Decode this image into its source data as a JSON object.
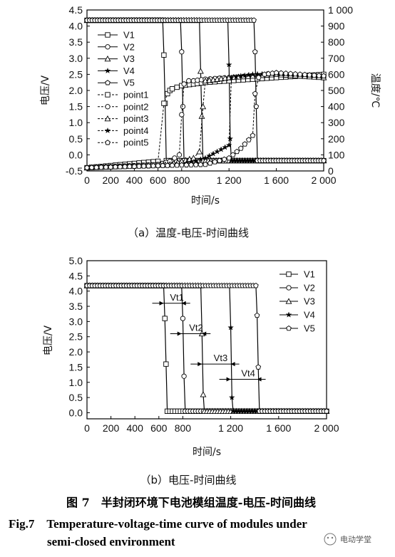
{
  "chart_data": [
    {
      "type": "line",
      "title": "",
      "subtitle": "（a）温度-电压-时间曲线",
      "xlabel": "时间/s",
      "ylabel": "电压/V",
      "y2label": "温度/℃",
      "xlim": [
        0,
        2000
      ],
      "ylim": [
        -0.5,
        4.5
      ],
      "y2lim": [
        0,
        1000
      ],
      "xticks": [
        "0",
        "200",
        "400",
        "600",
        "800",
        "1 200",
        "1 600",
        "2 000"
      ],
      "xtick_values": [
        0,
        200,
        400,
        600,
        800,
        1200,
        1600,
        2000
      ],
      "yticks": [
        "-0.5",
        "0.0",
        "0.5",
        "1.0",
        "1.5",
        "2.0",
        "2.5",
        "3.0",
        "3.5",
        "4.0",
        "4.5"
      ],
      "y2ticks": [
        "0",
        "100",
        "200",
        "300",
        "400",
        "500",
        "600",
        "700",
        "800",
        "900",
        "1 000"
      ],
      "legend": [
        "V1",
        "V2",
        "V3",
        "V4",
        "V5",
        "point1",
        "point2",
        "point3",
        "point4",
        "point5"
      ],
      "legend_position": "top-left",
      "series": [
        {
          "name": "V1",
          "axis": "voltage",
          "marker": "square",
          "x": [
            0,
            640,
            650,
            660,
            670,
            2000
          ],
          "y": [
            4.18,
            4.18,
            3.1,
            1.6,
            -0.18,
            -0.18
          ]
        },
        {
          "name": "V2",
          "axis": "voltage",
          "marker": "circle",
          "x": [
            0,
            790,
            800,
            810,
            820,
            2000
          ],
          "y": [
            4.18,
            4.18,
            3.2,
            1.5,
            -0.18,
            -0.18
          ]
        },
        {
          "name": "V3",
          "axis": "voltage",
          "marker": "triangle",
          "x": [
            0,
            950,
            960,
            970,
            980,
            2000
          ],
          "y": [
            4.18,
            4.18,
            2.6,
            1.2,
            -0.18,
            -0.18
          ]
        },
        {
          "name": "V4",
          "axis": "voltage",
          "marker": "star",
          "x": [
            0,
            1190,
            1200,
            1210,
            1220,
            2000
          ],
          "y": [
            4.18,
            4.18,
            2.8,
            0.5,
            -0.18,
            -0.18
          ]
        },
        {
          "name": "V5",
          "axis": "voltage",
          "marker": "pentagon",
          "x": [
            0,
            1410,
            1420,
            1430,
            1440,
            2000
          ],
          "y": [
            4.18,
            4.18,
            3.2,
            1.5,
            -0.18,
            -0.18
          ]
        },
        {
          "name": "point1",
          "axis": "temperature",
          "marker": "square-dashed",
          "x": [
            0,
            600,
            650,
            680,
            700,
            720,
            760,
            800,
            900,
            1000,
            1200,
            1400,
            1600,
            1800,
            2000
          ],
          "y": [
            20,
            60,
            420,
            480,
            500,
            510,
            520,
            530,
            540,
            550,
            560,
            570,
            580,
            590,
            600
          ]
        },
        {
          "name": "point2",
          "axis": "temperature",
          "marker": "circle-dashed",
          "x": [
            0,
            600,
            700,
            780,
            800,
            820,
            860,
            900,
            1000,
            1200,
            1400,
            1600,
            1800,
            2000
          ],
          "y": [
            20,
            40,
            60,
            100,
            350,
            540,
            560,
            560,
            570,
            580,
            590,
            600,
            590,
            580
          ]
        },
        {
          "name": "point3",
          "axis": "temperature",
          "marker": "triangle-dashed",
          "x": [
            0,
            700,
            800,
            900,
            950,
            980,
            1000,
            1100,
            1200,
            1400,
            1600,
            1800,
            2000
          ],
          "y": [
            20,
            40,
            60,
            80,
            120,
            400,
            560,
            570,
            580,
            590,
            600,
            590,
            580
          ]
        },
        {
          "name": "point4",
          "axis": "temperature",
          "marker": "star-dashed",
          "x": [
            0,
            800,
            1000,
            1100,
            1200,
            1220,
            1300,
            1400,
            1600,
            1800,
            2000
          ],
          "y": [
            20,
            40,
            80,
            120,
            160,
            580,
            590,
            600,
            605,
            600,
            590
          ]
        },
        {
          "name": "point5",
          "axis": "temperature",
          "marker": "pentagon-dashed",
          "x": [
            0,
            1000,
            1200,
            1300,
            1400,
            1420,
            1450,
            1500,
            1600,
            1800,
            2000
          ],
          "y": [
            20,
            40,
            80,
            140,
            220,
            480,
            580,
            600,
            610,
            600,
            590
          ]
        }
      ]
    },
    {
      "type": "line",
      "title": "",
      "subtitle": "（b）电压-时间曲线",
      "xlabel": "时间/s",
      "ylabel": "电压/V",
      "xlim": [
        0,
        2000
      ],
      "ylim": [
        -0.2,
        5.0
      ],
      "xticks": [
        "0",
        "200",
        "400",
        "600",
        "800",
        "1 200",
        "1 600",
        "2 000"
      ],
      "xtick_values": [
        0,
        200,
        400,
        600,
        800,
        1200,
        1600,
        2000
      ],
      "yticks": [
        "0.0",
        "0.5",
        "1.0",
        "1.5",
        "2.0",
        "2.5",
        "3.0",
        "3.5",
        "4.0",
        "4.5",
        "5.0"
      ],
      "legend": [
        "V1",
        "V2",
        "V3",
        "V4",
        "V5"
      ],
      "legend_position": "top-right",
      "annotations": [
        "Vt1",
        "Vt2",
        "Vt3",
        "Vt4"
      ],
      "annotation_spans": [
        [
          640,
          790
        ],
        [
          790,
          960
        ],
        [
          960,
          1200
        ],
        [
          1200,
          1420
        ]
      ],
      "annotation_levels": [
        3.6,
        2.6,
        1.6,
        1.1
      ],
      "series": [
        {
          "name": "V1",
          "marker": "square",
          "x": [
            0,
            640,
            650,
            660,
            670,
            2000
          ],
          "y": [
            4.18,
            4.18,
            3.1,
            1.6,
            0.05,
            0.05
          ]
        },
        {
          "name": "V2",
          "marker": "circle",
          "x": [
            0,
            790,
            800,
            810,
            820,
            2000
          ],
          "y": [
            4.18,
            4.18,
            3.1,
            1.2,
            0.05,
            0.05
          ]
        },
        {
          "name": "V3",
          "marker": "triangle",
          "x": [
            0,
            950,
            960,
            970,
            980,
            2000
          ],
          "y": [
            4.18,
            4.18,
            2.6,
            0.6,
            0.05,
            0.05
          ]
        },
        {
          "name": "V4",
          "marker": "star",
          "x": [
            0,
            1190,
            1200,
            1210,
            1220,
            2000
          ],
          "y": [
            4.18,
            4.18,
            2.8,
            0.5,
            0.05,
            0.05
          ]
        },
        {
          "name": "V5",
          "marker": "pentagon",
          "x": [
            0,
            1410,
            1420,
            1430,
            1440,
            2000
          ],
          "y": [
            4.18,
            4.18,
            3.2,
            1.5,
            0.05,
            0.05
          ]
        }
      ]
    }
  ],
  "figure": {
    "caption_cn": "图 7　半封闭环境下电池模组温度-电压-时间曲线",
    "caption_en_line1": "Fig.7　Temperature-voltage-time curve of modules under",
    "caption_en_line2": "semi-closed environment",
    "watermark": "电动学堂"
  }
}
